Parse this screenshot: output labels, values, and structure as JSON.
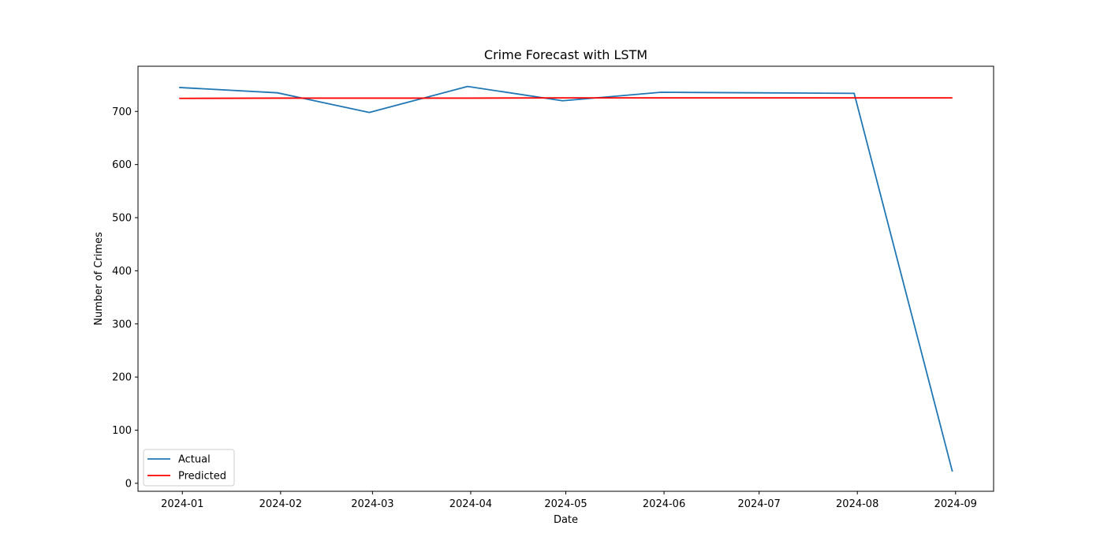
{
  "chart_data": {
    "type": "line",
    "title": "Crime Forecast with LSTM",
    "xlabel": "Date",
    "ylabel": "Number of Crimes",
    "x": [
      "2023-12-31",
      "2024-01-31",
      "2024-02-29",
      "2024-03-31",
      "2024-04-30",
      "2024-05-31",
      "2024-06-30",
      "2024-07-31",
      "2024-08-31"
    ],
    "x_ticks": [
      "2024-01",
      "2024-02",
      "2024-03",
      "2024-04",
      "2024-05",
      "2024-06",
      "2024-07",
      "2024-08",
      "2024-09"
    ],
    "x_tick_dates": [
      "2024-01-01",
      "2024-02-01",
      "2024-03-01",
      "2024-04-01",
      "2024-05-01",
      "2024-06-01",
      "2024-07-01",
      "2024-08-01",
      "2024-09-01"
    ],
    "xlim": [
      "2023-12-18",
      "2024-09-13"
    ],
    "y_ticks": [
      0,
      100,
      200,
      300,
      400,
      500,
      600,
      700
    ],
    "ylim": [
      -15,
      785
    ],
    "grid": false,
    "legend_position": "lower-left",
    "series": [
      {
        "name": "Actual",
        "color": "#1f77b4",
        "values": [
          745,
          735,
          698,
          747,
          720,
          736,
          735,
          734,
          22
        ]
      },
      {
        "name": "Predicted",
        "color": "#ff0000",
        "values": [
          724.5,
          725,
          725,
          725,
          725.5,
          725.5,
          725.5,
          725.5,
          725.5
        ]
      }
    ]
  }
}
